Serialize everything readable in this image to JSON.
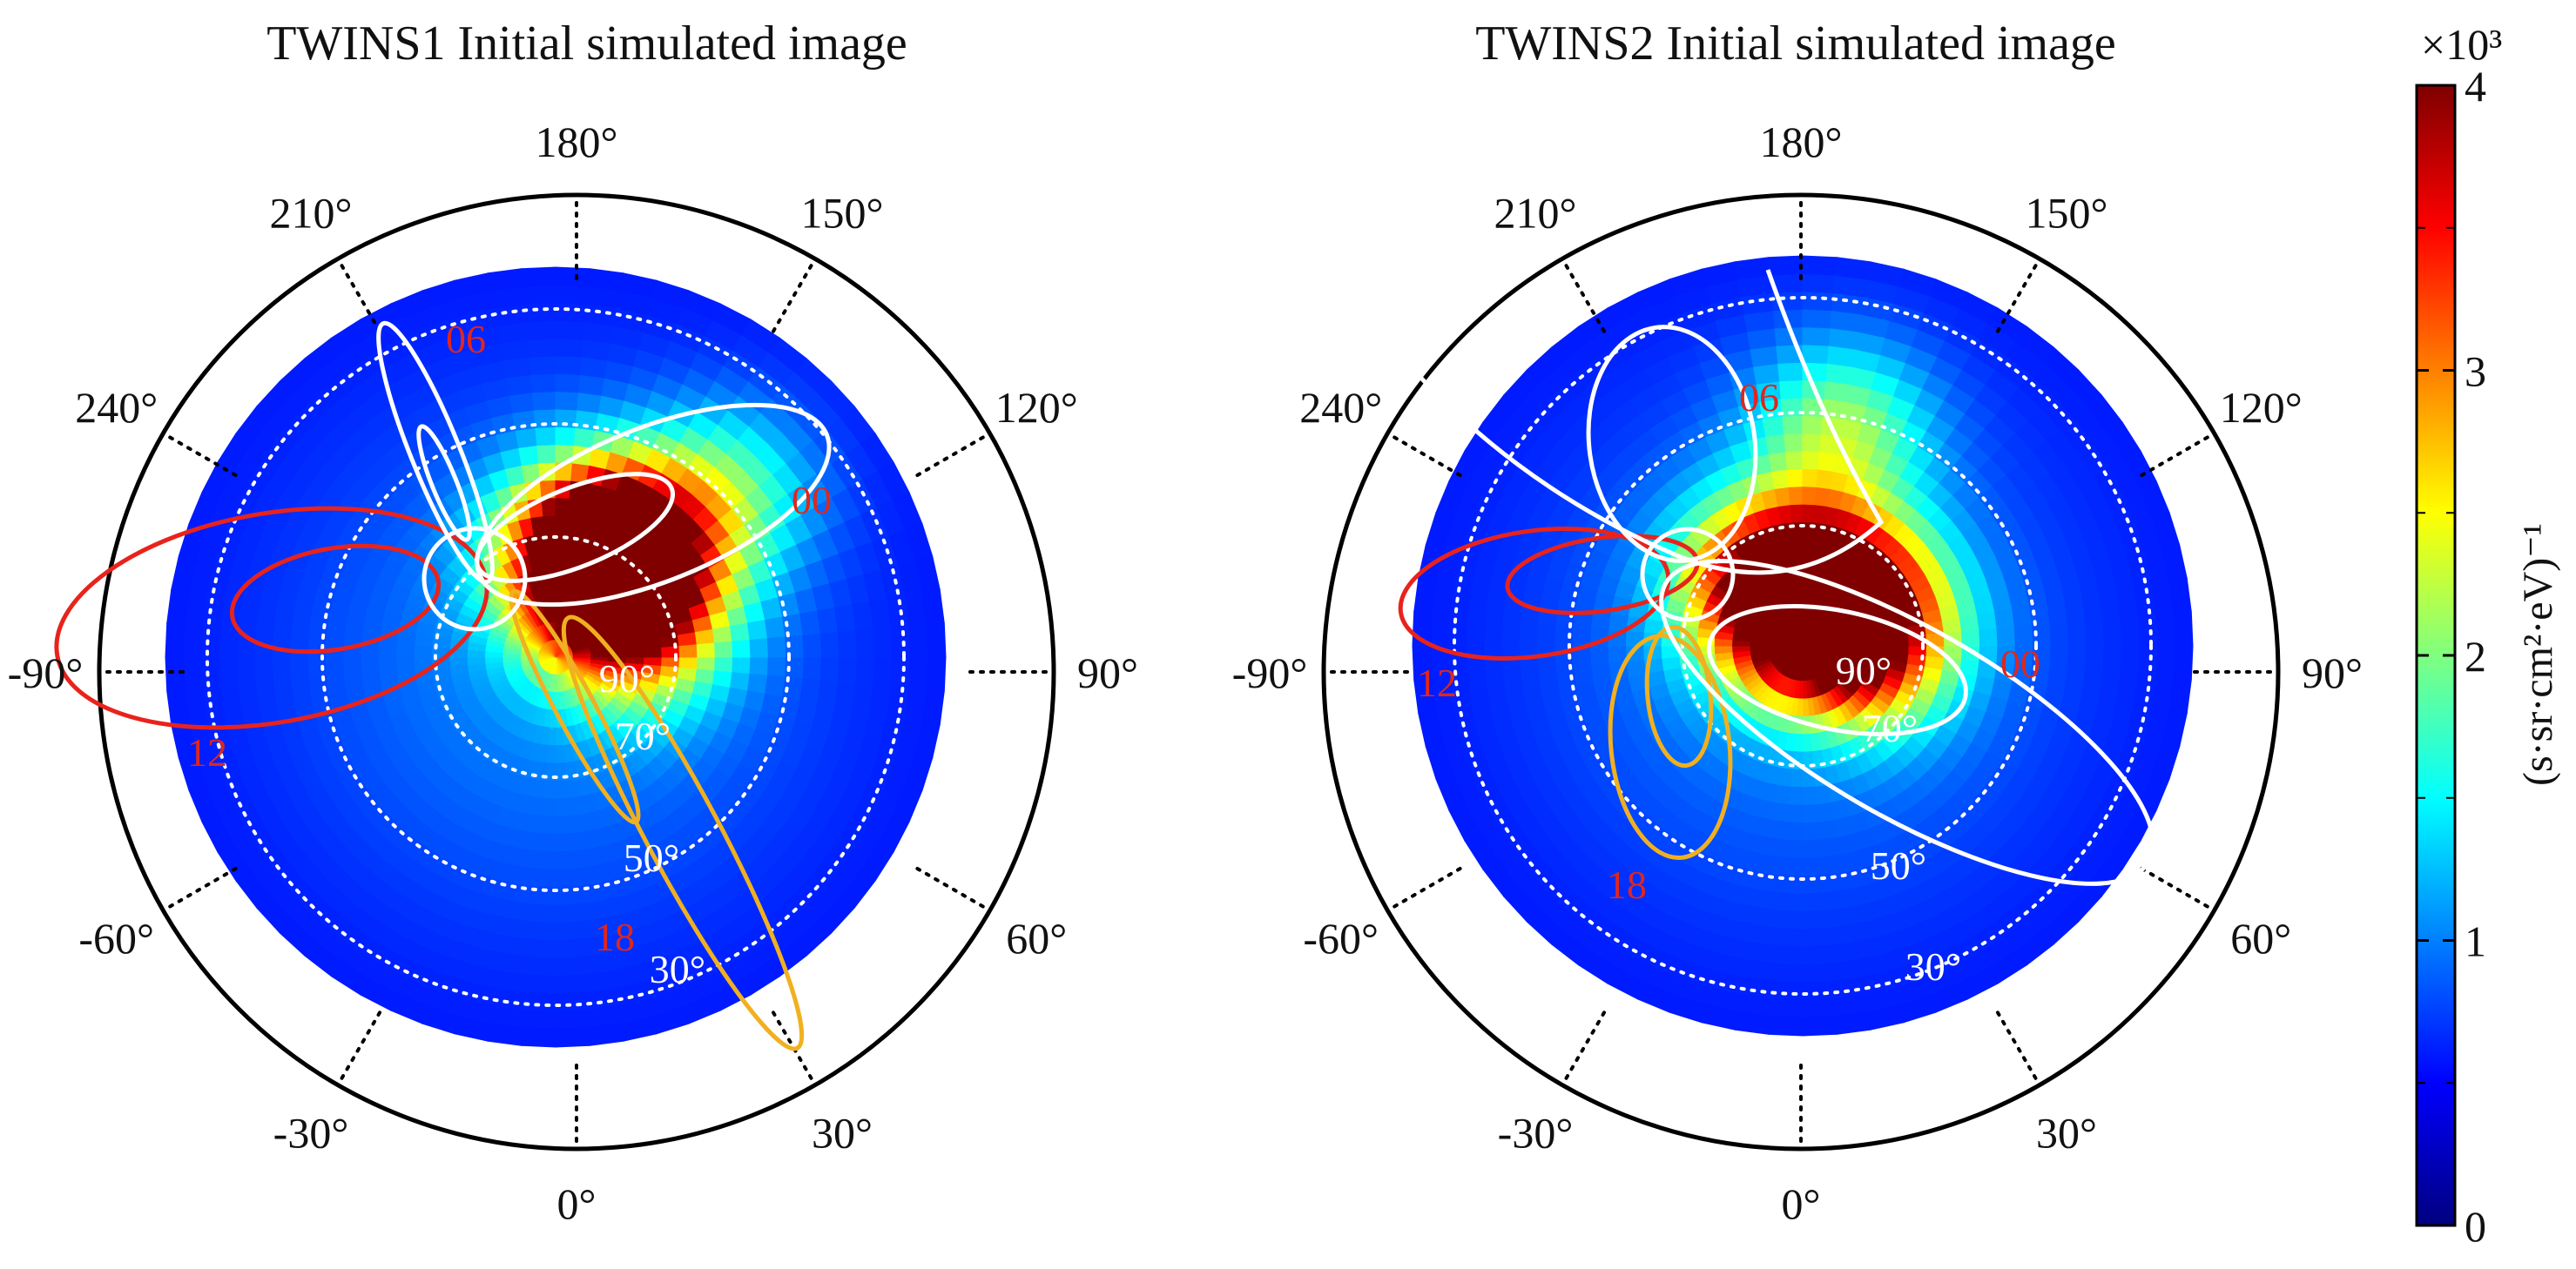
{
  "colors": {
    "red_contour": "#e8231c",
    "orange_contour": "#f0b020",
    "white_contour": "#ffffff",
    "mlt_label": "#e0261d",
    "colormap": "jet"
  },
  "chart_data": [
    {
      "type": "heatmap",
      "projection": "polar",
      "title": "TWINS1 Initial simulated image",
      "outer_tick_labels": [
        "180°",
        "210°",
        "240°",
        "-90°",
        "-60°",
        "-30°",
        "0°",
        "30°",
        "60°",
        "90°",
        "120°",
        "150°"
      ],
      "outer_tick_angles_deg": [
        180,
        210,
        240,
        270,
        300,
        330,
        0,
        30,
        60,
        90,
        120,
        150
      ],
      "elevation_ring_labels": [
        "90°",
        "70°",
        "50°",
        "30°"
      ],
      "elevation_rings_deg": [
        90,
        70,
        50,
        30
      ],
      "mlt_labels": [
        "06",
        "00",
        "12",
        "18"
      ],
      "hotspots": [
        {
          "azimuth_deg": 148,
          "elevation_deg": 72,
          "value": 4.0
        },
        {
          "azimuth_deg": 158,
          "elevation_deg": 70,
          "value": 3.5
        },
        {
          "azimuth_deg": 112,
          "elevation_deg": 74,
          "value": 2.0
        },
        {
          "azimuth_deg": 134,
          "elevation_deg": 50,
          "value": 1.4
        }
      ],
      "background_value": 0.3
    },
    {
      "type": "heatmap",
      "projection": "polar",
      "title": "TWINS2 Initial simulated image",
      "outer_tick_labels": [
        "180°",
        "210°",
        "240°",
        "-90°",
        "-60°",
        "-30°",
        "0°",
        "30°",
        "60°",
        "90°",
        "120°",
        "150°"
      ],
      "outer_tick_angles_deg": [
        180,
        210,
        240,
        270,
        300,
        330,
        0,
        30,
        60,
        90,
        120,
        150
      ],
      "elevation_ring_labels": [
        "90°",
        "70°",
        "50°",
        "30°"
      ],
      "elevation_rings_deg": [
        90,
        70,
        50,
        30
      ],
      "mlt_labels": [
        "06",
        "00",
        "12",
        "18"
      ],
      "hotspots": [
        {
          "azimuth_deg": 152,
          "elevation_deg": 82,
          "value": 4.0
        },
        {
          "azimuth_deg": 210,
          "elevation_deg": 78,
          "value": 3.2
        },
        {
          "azimuth_deg": 170,
          "elevation_deg": 52,
          "value": 1.6
        },
        {
          "azimuth_deg": 100,
          "elevation_deg": 78,
          "value": 2.8
        }
      ],
      "background_value": 0.3
    },
    {
      "type": "colorbar",
      "multiplier_label": "×10³",
      "ticks": [
        "0",
        "1",
        "2",
        "3",
        "4"
      ],
      "tick_values": [
        0,
        1,
        2,
        3,
        4
      ],
      "range": [
        0,
        4
      ],
      "label": "(s·sr·cm²·eV)⁻¹"
    }
  ]
}
